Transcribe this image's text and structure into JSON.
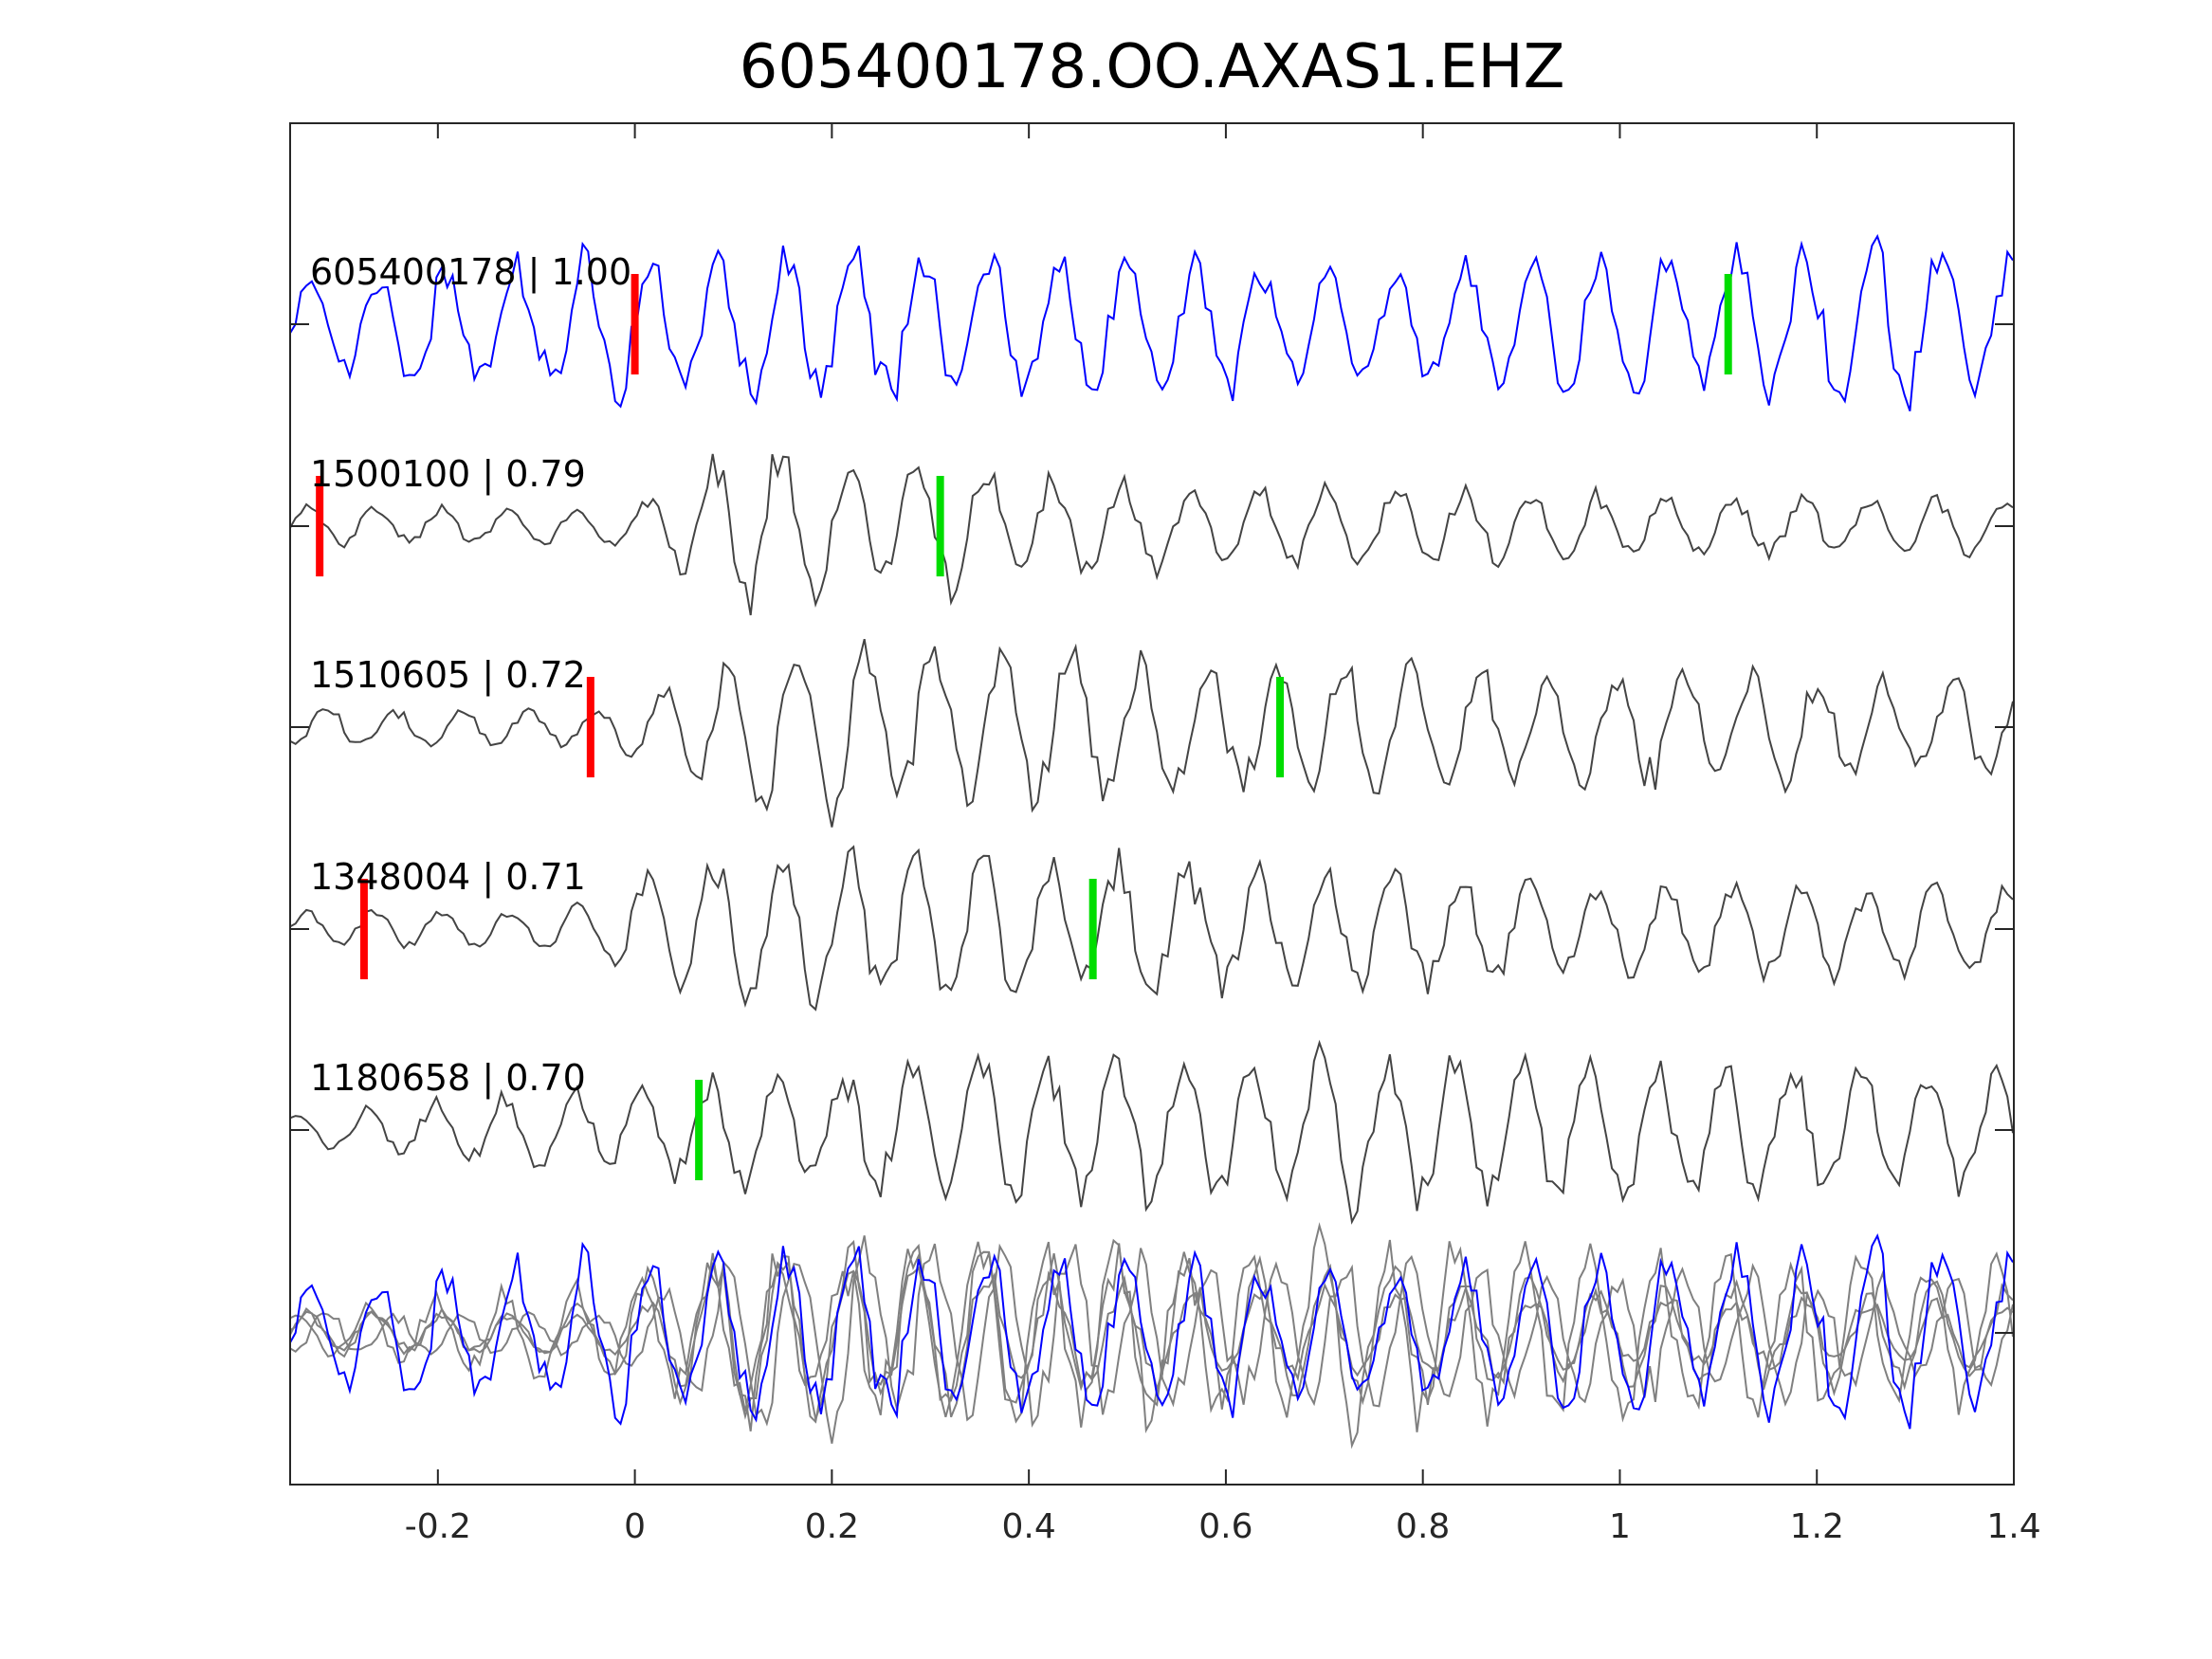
{
  "chart_data": {
    "type": "line",
    "title": "605400178.OO.AXAS1.EHZ",
    "xlabel": "",
    "ylabel": "",
    "xlim": [
      -0.35,
      1.4
    ],
    "xticks": [
      -0.2,
      0,
      0.2,
      0.4,
      0.6,
      0.8,
      1,
      1.2,
      1.4
    ],
    "xtick_labels": [
      "-0.2",
      "0",
      "0.2",
      "0.4",
      "0.6",
      "0.8",
      "1",
      "1.2",
      "1.4"
    ],
    "grid": false,
    "traces": [
      {
        "label": "605400178 | 1.00",
        "color": "#0000ff",
        "p_pick": 0.0,
        "s_pick": 1.11,
        "onset": -0.35,
        "peak": 0.55,
        "decay": 2.0,
        "amp": 1.0,
        "seed": 11
      },
      {
        "label": "1500100 | 0.79",
        "color": "#444444",
        "p_pick": -0.32,
        "s_pick": 0.31,
        "onset": 0.0,
        "peak": 0.13,
        "decay": 0.35,
        "amp": 1.0,
        "seed": 23
      },
      {
        "label": "1510605 | 0.72",
        "color": "#444444",
        "p_pick": -0.045,
        "s_pick": 0.655,
        "onset": -0.03,
        "peak": 0.15,
        "decay": 1.2,
        "amp": 1.0,
        "seed": 37
      },
      {
        "label": "1348004 | 0.71",
        "color": "#444444",
        "p_pick": -0.275,
        "s_pick": 0.465,
        "onset": -0.1,
        "peak": 0.15,
        "decay": 0.9,
        "amp": 1.0,
        "seed": 41
      },
      {
        "label": "1180658 | 0.70",
        "color": "#444444",
        "p_pick": null,
        "s_pick": 0.065,
        "onset": -0.35,
        "peak": 0.5,
        "decay": 3.0,
        "amp": 0.9,
        "seed": 53
      }
    ],
    "overlay": {
      "description_color_main": "#0000ff",
      "description_color_others": "#808080"
    },
    "colors": {
      "p_pick": "#ff0000",
      "s_pick": "#00dd00",
      "axis": "#262626"
    }
  }
}
